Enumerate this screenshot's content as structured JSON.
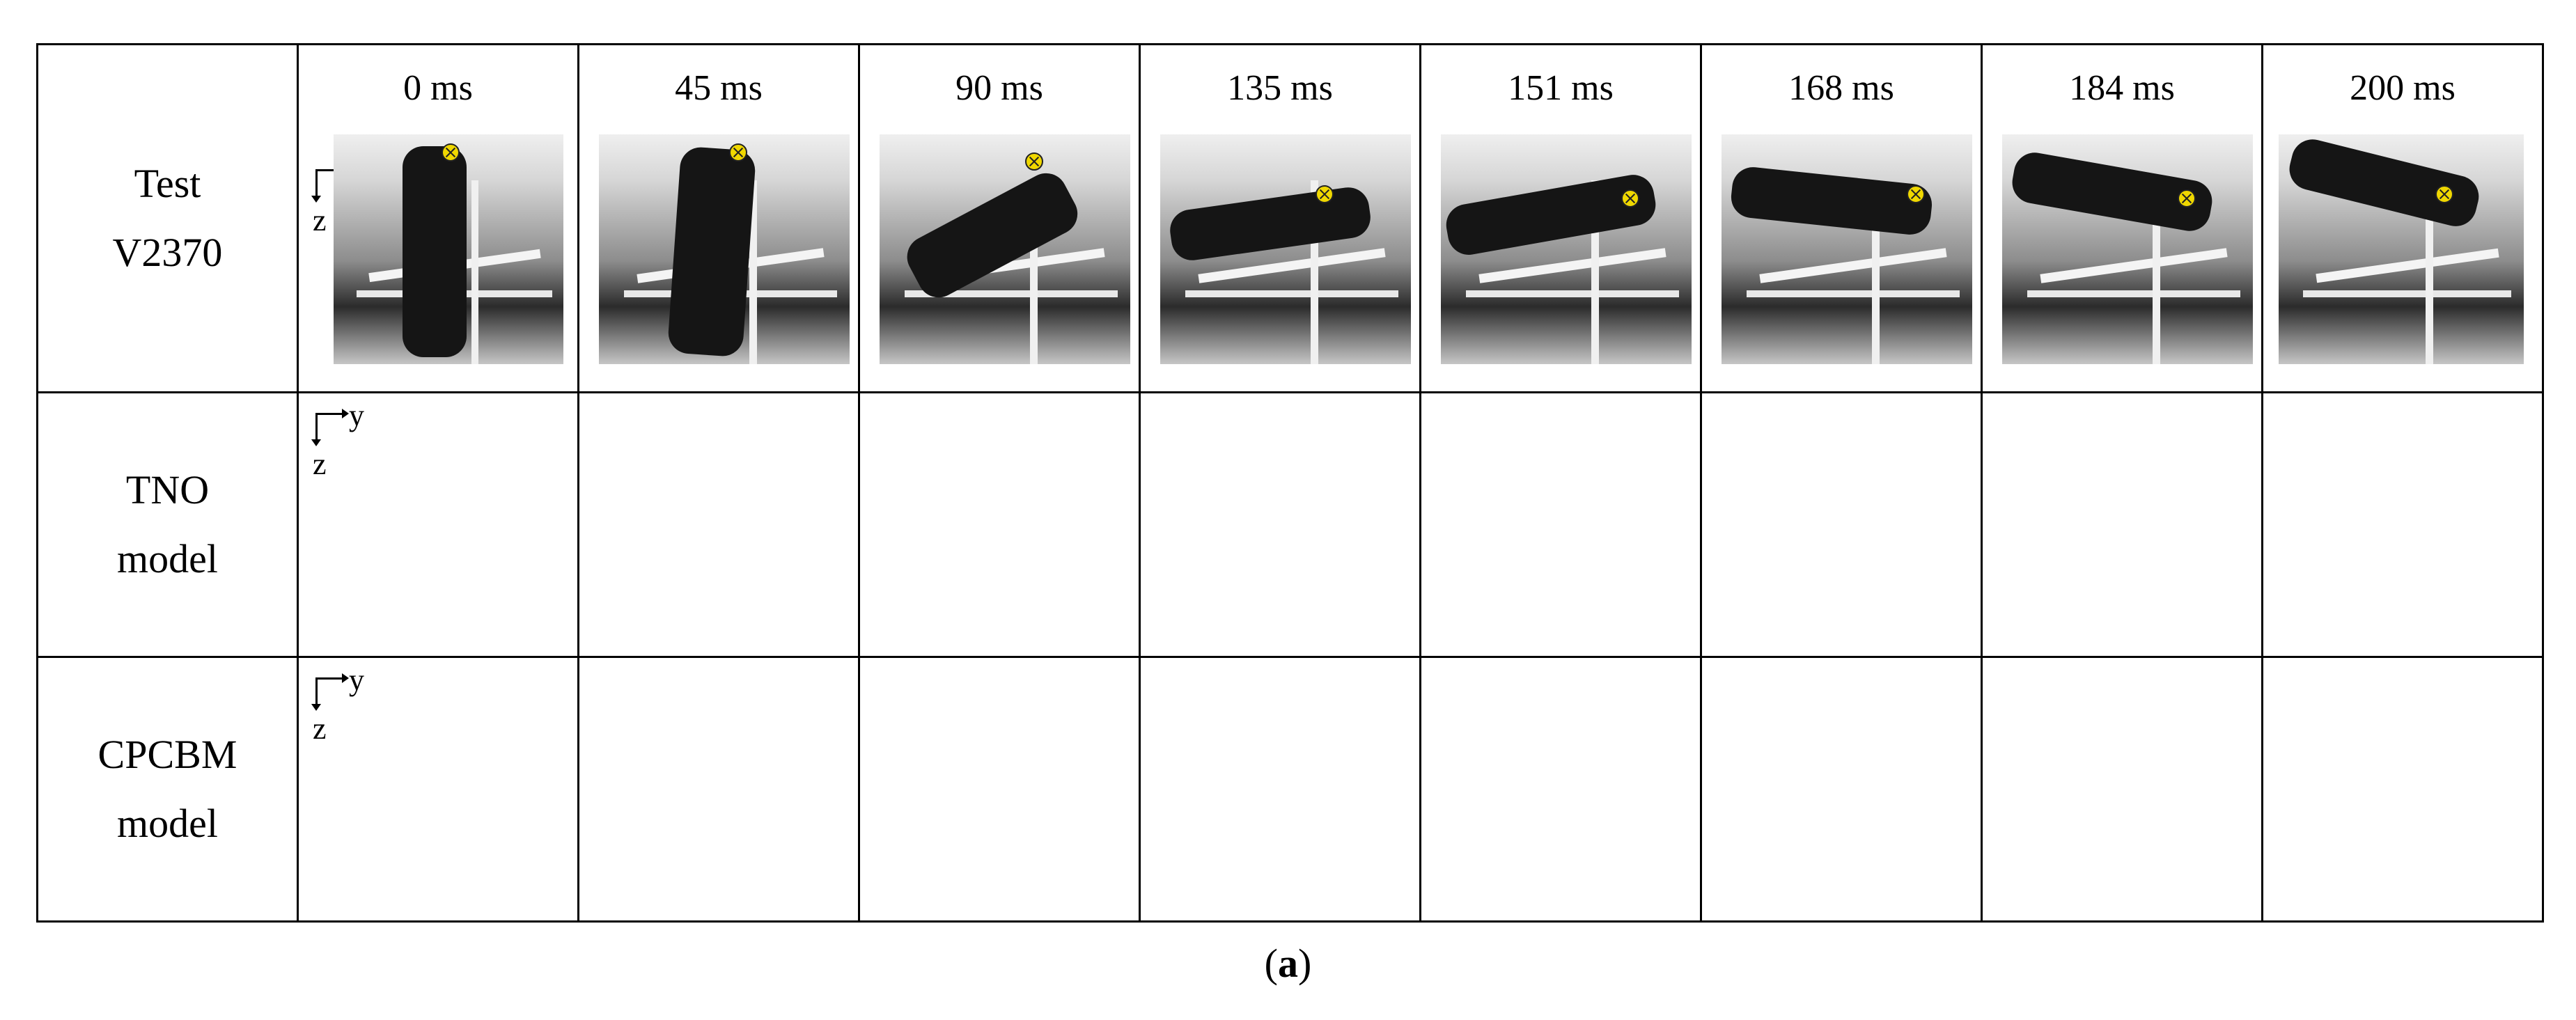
{
  "header": {
    "empty_corner": ""
  },
  "times": [
    "0 ms",
    "45 ms",
    "90 ms",
    "135 ms",
    "151 ms",
    "168 ms",
    "184 ms",
    "200 ms"
  ],
  "rows": [
    {
      "label_line1": "Test",
      "label_line2": "V2370"
    },
    {
      "label_line1": "TNO",
      "label_line2": "model"
    },
    {
      "label_line1": "CPCBM",
      "label_line2": "model"
    }
  ],
  "axis": {
    "y": "y",
    "z": "z"
  },
  "caption": {
    "open": "(",
    "letter": "a",
    "close": ")"
  },
  "colors": {
    "dummy": "#e0960a",
    "dummy_dark": "#b06e00",
    "head_cpcbm": "#d8d8d8",
    "seat": "#c8c8c8",
    "refline": "#5a7a46"
  }
}
